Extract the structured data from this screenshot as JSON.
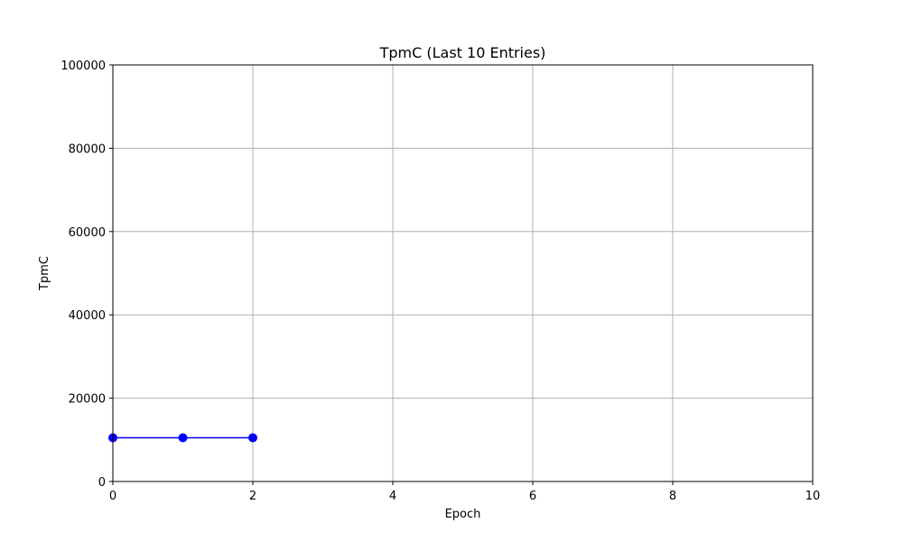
{
  "chart_data": {
    "type": "line",
    "title": "TpmC (Last 10 Entries)",
    "xlabel": "Epoch",
    "ylabel": "TpmC",
    "xlim": [
      0,
      10
    ],
    "ylim": [
      0,
      100000
    ],
    "x_ticks": [
      0,
      2,
      4,
      6,
      8,
      10
    ],
    "y_ticks": [
      0,
      20000,
      40000,
      60000,
      80000,
      100000
    ],
    "x_tick_labels": [
      "0",
      "2",
      "4",
      "6",
      "8",
      "10"
    ],
    "y_tick_labels": [
      "0",
      "20000",
      "40000",
      "60000",
      "80000",
      "100000"
    ],
    "grid": true,
    "legend": "none",
    "series": [
      {
        "color": "#0000ff",
        "marker": "circle",
        "x": [
          0,
          1,
          2
        ],
        "y": [
          10500,
          10500,
          10500
        ]
      }
    ]
  },
  "colors": {
    "grid": "#b0b0b0",
    "axes": "#000000",
    "background": "#ffffff"
  }
}
